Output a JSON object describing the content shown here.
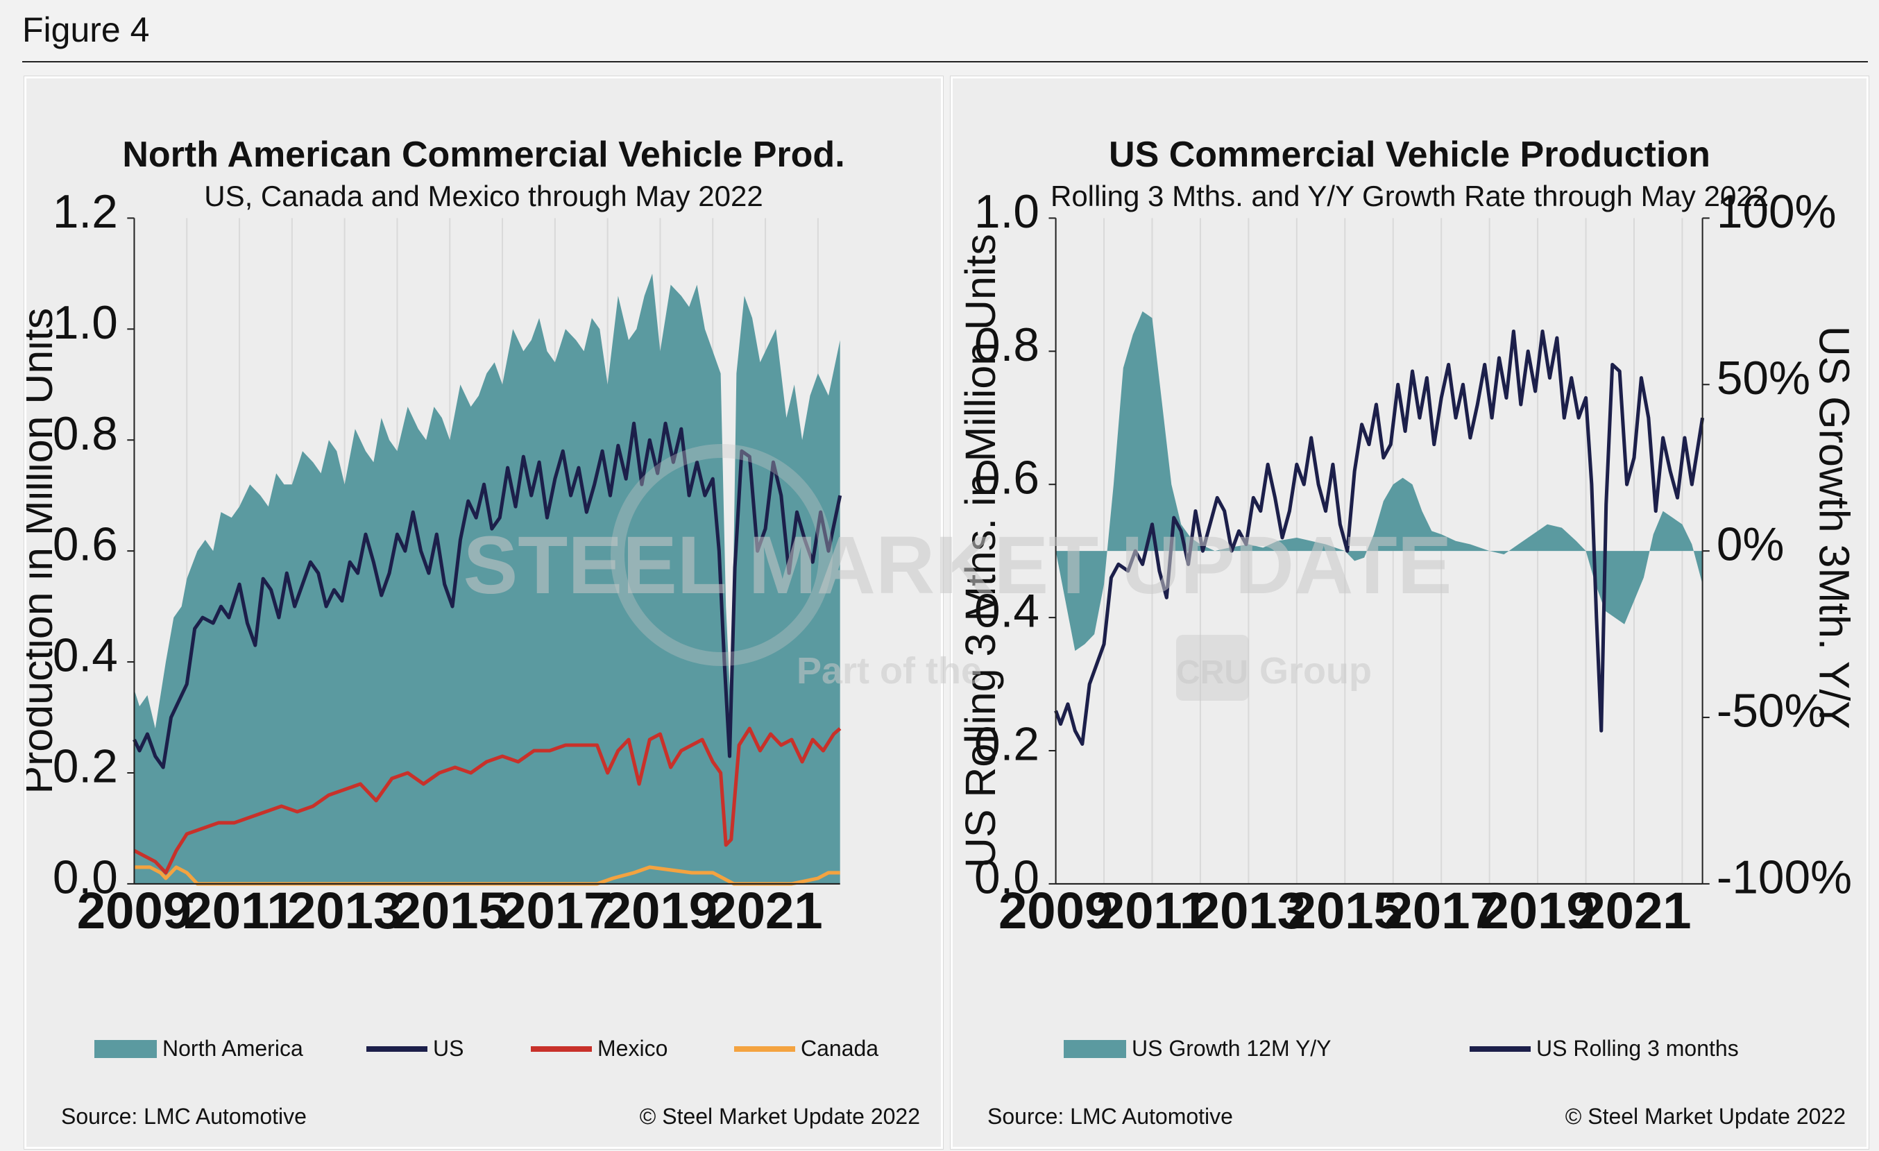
{
  "figure_label": "Figure 4",
  "watermark": {
    "line1": "STEEL MARKET UPDATE",
    "line2_a": "Part of the",
    "line2_b": "CRU",
    "line2_c": "Group"
  },
  "left": {
    "title": "North American Commercial Vehicle Prod.",
    "subtitle": "US, Canada and Mexico through May 2022",
    "source": "Source: LMC Automotive",
    "copyright": "© Steel Market Update 2022"
  },
  "right": {
    "title": "US Commercial Vehicle Production",
    "subtitle": "Rolling 3 Mths. and Y/Y Growth Rate through May 2022",
    "source": "Source: LMC Automotive",
    "copyright": "© Steel Market Update 2022"
  },
  "colors": {
    "north_america": "#5b9aa0",
    "us": "#1c1f4a",
    "mexico": "#c8312a",
    "canada": "#f4a340"
  },
  "chart_data": [
    {
      "type": "area",
      "title": "North American Commercial Vehicle Prod.",
      "subtitle": "US, Canada and Mexico through May 2022",
      "ylabel": "Production in Million Units",
      "ylim": [
        0,
        1.2
      ],
      "yticks": [
        "0.0",
        "0.2",
        "0.4",
        "0.6",
        "0.8",
        "1.0",
        "1.2"
      ],
      "xlim": [
        2009,
        2022.42
      ],
      "xticks": [
        "2009",
        "2011",
        "2013",
        "2015",
        "2017",
        "2019",
        "2021"
      ],
      "grid": "vertical",
      "legend_position": "bottom",
      "series": [
        {
          "name": "North America",
          "kind": "area",
          "x": [
            2009.0,
            2009.1,
            2009.25,
            2009.4,
            2009.6,
            2009.75,
            2009.9,
            2010.0,
            2010.2,
            2010.35,
            2010.5,
            2010.65,
            2010.85,
            2011.0,
            2011.2,
            2011.4,
            2011.55,
            2011.7,
            2011.85,
            2012.0,
            2012.2,
            2012.4,
            2012.55,
            2012.7,
            2012.85,
            2013.0,
            2013.2,
            2013.4,
            2013.55,
            2013.7,
            2013.85,
            2014.0,
            2014.2,
            2014.4,
            2014.55,
            2014.7,
            2014.85,
            2015.0,
            2015.2,
            2015.4,
            2015.55,
            2015.7,
            2015.85,
            2016.0,
            2016.2,
            2016.4,
            2016.55,
            2016.7,
            2016.85,
            2017.0,
            2017.2,
            2017.4,
            2017.55,
            2017.7,
            2017.85,
            2018.0,
            2018.2,
            2018.4,
            2018.55,
            2018.7,
            2018.85,
            2019.0,
            2019.2,
            2019.4,
            2019.55,
            2019.7,
            2019.85,
            2020.0,
            2020.15,
            2020.25,
            2020.35,
            2020.45,
            2020.6,
            2020.75,
            2020.9,
            2021.0,
            2021.2,
            2021.4,
            2021.55,
            2021.7,
            2021.85,
            2022.0,
            2022.2,
            2022.42
          ],
          "y": [
            0.35,
            0.32,
            0.34,
            0.28,
            0.4,
            0.48,
            0.5,
            0.55,
            0.6,
            0.62,
            0.6,
            0.67,
            0.66,
            0.68,
            0.72,
            0.7,
            0.68,
            0.74,
            0.72,
            0.72,
            0.78,
            0.76,
            0.74,
            0.8,
            0.78,
            0.72,
            0.82,
            0.78,
            0.76,
            0.84,
            0.8,
            0.78,
            0.86,
            0.82,
            0.8,
            0.86,
            0.84,
            0.8,
            0.9,
            0.86,
            0.88,
            0.92,
            0.94,
            0.9,
            1.0,
            0.96,
            0.98,
            1.02,
            0.96,
            0.94,
            1.0,
            0.98,
            0.96,
            1.02,
            1.0,
            0.9,
            1.06,
            0.98,
            1.0,
            1.06,
            1.1,
            0.96,
            1.08,
            1.06,
            1.04,
            1.08,
            1.0,
            0.96,
            0.92,
            0.5,
            0.3,
            0.92,
            1.06,
            1.02,
            0.94,
            0.96,
            1.0,
            0.84,
            0.9,
            0.8,
            0.88,
            0.92,
            0.88,
            0.98
          ]
        },
        {
          "name": "US",
          "kind": "line",
          "x": [
            2009.0,
            2009.1,
            2009.25,
            2009.4,
            2009.55,
            2009.7,
            2009.85,
            2010.0,
            2010.15,
            2010.3,
            2010.5,
            2010.65,
            2010.8,
            2011.0,
            2011.15,
            2011.3,
            2011.45,
            2011.6,
            2011.75,
            2011.9,
            2012.05,
            2012.2,
            2012.35,
            2012.5,
            2012.65,
            2012.8,
            2012.95,
            2013.1,
            2013.25,
            2013.4,
            2013.55,
            2013.7,
            2013.85,
            2014.0,
            2014.15,
            2014.3,
            2014.45,
            2014.6,
            2014.75,
            2014.9,
            2015.05,
            2015.2,
            2015.35,
            2015.5,
            2015.65,
            2015.8,
            2015.95,
            2016.1,
            2016.25,
            2016.4,
            2016.55,
            2016.7,
            2016.85,
            2017.0,
            2017.15,
            2017.3,
            2017.45,
            2017.6,
            2017.75,
            2017.9,
            2018.05,
            2018.2,
            2018.35,
            2018.5,
            2018.65,
            2018.8,
            2018.95,
            2019.1,
            2019.25,
            2019.4,
            2019.55,
            2019.7,
            2019.85,
            2020.0,
            2020.12,
            2020.22,
            2020.32,
            2020.42,
            2020.55,
            2020.7,
            2020.85,
            2021.0,
            2021.15,
            2021.3,
            2021.45,
            2021.6,
            2021.75,
            2021.9,
            2022.05,
            2022.2,
            2022.42
          ],
          "y": [
            0.26,
            0.24,
            0.27,
            0.23,
            0.21,
            0.3,
            0.33,
            0.36,
            0.46,
            0.48,
            0.47,
            0.5,
            0.48,
            0.54,
            0.47,
            0.43,
            0.55,
            0.53,
            0.48,
            0.56,
            0.5,
            0.54,
            0.58,
            0.56,
            0.5,
            0.53,
            0.51,
            0.58,
            0.56,
            0.63,
            0.58,
            0.52,
            0.56,
            0.63,
            0.6,
            0.67,
            0.6,
            0.56,
            0.63,
            0.54,
            0.5,
            0.62,
            0.69,
            0.66,
            0.72,
            0.64,
            0.66,
            0.75,
            0.68,
            0.77,
            0.7,
            0.76,
            0.66,
            0.73,
            0.78,
            0.7,
            0.75,
            0.67,
            0.72,
            0.78,
            0.7,
            0.79,
            0.73,
            0.83,
            0.72,
            0.8,
            0.74,
            0.83,
            0.76,
            0.82,
            0.7,
            0.76,
            0.7,
            0.73,
            0.6,
            0.4,
            0.23,
            0.57,
            0.78,
            0.77,
            0.6,
            0.64,
            0.76,
            0.7,
            0.56,
            0.67,
            0.62,
            0.58,
            0.67,
            0.6,
            0.7
          ]
        },
        {
          "name": "Mexico",
          "kind": "line",
          "x": [
            2009.0,
            2009.2,
            2009.4,
            2009.6,
            2009.8,
            2010.0,
            2010.3,
            2010.6,
            2010.9,
            2011.2,
            2011.5,
            2011.8,
            2012.1,
            2012.4,
            2012.7,
            2013.0,
            2013.3,
            2013.6,
            2013.9,
            2014.2,
            2014.5,
            2014.8,
            2015.1,
            2015.4,
            2015.7,
            2016.0,
            2016.3,
            2016.6,
            2016.9,
            2017.2,
            2017.5,
            2017.8,
            2018.0,
            2018.2,
            2018.4,
            2018.6,
            2018.8,
            2019.0,
            2019.2,
            2019.4,
            2019.6,
            2019.8,
            2020.0,
            2020.15,
            2020.25,
            2020.35,
            2020.5,
            2020.7,
            2020.9,
            2021.1,
            2021.3,
            2021.5,
            2021.7,
            2021.9,
            2022.1,
            2022.3,
            2022.42
          ],
          "y": [
            0.06,
            0.05,
            0.04,
            0.02,
            0.06,
            0.09,
            0.1,
            0.11,
            0.11,
            0.12,
            0.13,
            0.14,
            0.13,
            0.14,
            0.16,
            0.17,
            0.18,
            0.15,
            0.19,
            0.2,
            0.18,
            0.2,
            0.21,
            0.2,
            0.22,
            0.23,
            0.22,
            0.24,
            0.24,
            0.25,
            0.25,
            0.25,
            0.2,
            0.24,
            0.26,
            0.18,
            0.26,
            0.27,
            0.21,
            0.24,
            0.25,
            0.26,
            0.22,
            0.2,
            0.07,
            0.08,
            0.25,
            0.28,
            0.24,
            0.27,
            0.25,
            0.26,
            0.22,
            0.26,
            0.24,
            0.27,
            0.28
          ]
        },
        {
          "name": "Canada",
          "kind": "line",
          "x": [
            2009.0,
            2009.3,
            2009.5,
            2009.6,
            2009.8,
            2010.0,
            2010.2,
            2011.0,
            2012.0,
            2013.0,
            2014.0,
            2015.0,
            2016.0,
            2017.0,
            2017.8,
            2018.1,
            2018.5,
            2018.8,
            2019.2,
            2019.6,
            2020.0,
            2020.2,
            2020.4,
            2021.0,
            2021.5,
            2022.0,
            2022.2,
            2022.42
          ],
          "y": [
            0.03,
            0.03,
            0.02,
            0.01,
            0.03,
            0.02,
            0.0,
            0.0,
            0.0,
            0.0,
            0.0,
            0.0,
            0.0,
            0.0,
            0.0,
            0.01,
            0.02,
            0.03,
            0.025,
            0.02,
            0.02,
            0.01,
            0.0,
            0.0,
            0.0,
            0.01,
            0.02,
            0.02
          ]
        }
      ]
    },
    {
      "type": "area",
      "title": "US Commercial Vehicle Production",
      "subtitle": "Rolling 3 Mths. and Y/Y Growth Rate through May 2022",
      "ylabel": "US Rolling 3 Mths. in Million Units",
      "y2label": "US Growth 3Mth. Y/Y",
      "ylim": [
        0,
        1.0
      ],
      "yticks": [
        "0.0",
        "0.2",
        "0.4",
        "0.6",
        "0.8",
        "1.0"
      ],
      "y2lim": [
        -100,
        100
      ],
      "y2ticks": [
        "-100%",
        "-50%",
        "0%",
        "50%",
        "100%"
      ],
      "xlim": [
        2009,
        2022.42
      ],
      "xticks": [
        "2009",
        "2011",
        "2013",
        "2015",
        "2017",
        "2019",
        "2021"
      ],
      "grid": "vertical",
      "legend_position": "bottom",
      "series": [
        {
          "name": "US Growth 12M Y/Y",
          "kind": "area",
          "axis": "right",
          "x": [
            2009.0,
            2009.2,
            2009.4,
            2009.6,
            2009.8,
            2010.0,
            2010.2,
            2010.4,
            2010.6,
            2010.8,
            2011.0,
            2011.2,
            2011.4,
            2011.6,
            2011.8,
            2012.0,
            2012.3,
            2012.6,
            2013.0,
            2013.3,
            2013.6,
            2014.0,
            2014.3,
            2014.6,
            2015.0,
            2015.2,
            2015.4,
            2015.6,
            2015.8,
            2016.0,
            2016.2,
            2016.4,
            2016.6,
            2016.8,
            2017.0,
            2017.3,
            2017.6,
            2018.0,
            2018.3,
            2018.6,
            2018.9,
            2019.2,
            2019.5,
            2019.8,
            2020.0,
            2020.2,
            2020.4,
            2020.6,
            2020.8,
            2021.0,
            2021.2,
            2021.4,
            2021.6,
            2021.8,
            2022.0,
            2022.2,
            2022.42
          ],
          "y": [
            0,
            -15,
            -30,
            -28,
            -25,
            -10,
            20,
            55,
            65,
            72,
            70,
            45,
            20,
            8,
            4,
            2,
            0,
            1,
            2,
            1,
            3,
            4,
            3,
            2,
            0,
            -3,
            -2,
            5,
            15,
            20,
            22,
            20,
            12,
            6,
            5,
            3,
            2,
            0,
            -1,
            2,
            5,
            8,
            7,
            3,
            0,
            -10,
            -18,
            -20,
            -22,
            -15,
            -8,
            5,
            12,
            10,
            8,
            2,
            -10
          ]
        },
        {
          "name": "US Rolling 3 months",
          "kind": "line",
          "axis": "left",
          "x": [
            2009.0,
            2009.1,
            2009.25,
            2009.4,
            2009.55,
            2009.7,
            2009.85,
            2010.0,
            2010.15,
            2010.3,
            2010.5,
            2010.65,
            2010.8,
            2011.0,
            2011.15,
            2011.3,
            2011.45,
            2011.6,
            2011.75,
            2011.9,
            2012.05,
            2012.2,
            2012.35,
            2012.5,
            2012.65,
            2012.8,
            2012.95,
            2013.1,
            2013.25,
            2013.4,
            2013.55,
            2013.7,
            2013.85,
            2014.0,
            2014.15,
            2014.3,
            2014.45,
            2014.6,
            2014.75,
            2014.9,
            2015.05,
            2015.2,
            2015.35,
            2015.5,
            2015.65,
            2015.8,
            2015.95,
            2016.1,
            2016.25,
            2016.4,
            2016.55,
            2016.7,
            2016.85,
            2017.0,
            2017.15,
            2017.3,
            2017.45,
            2017.6,
            2017.75,
            2017.9,
            2018.05,
            2018.2,
            2018.35,
            2018.5,
            2018.65,
            2018.8,
            2018.95,
            2019.1,
            2019.25,
            2019.4,
            2019.55,
            2019.7,
            2019.85,
            2020.0,
            2020.12,
            2020.22,
            2020.32,
            2020.42,
            2020.55,
            2020.7,
            2020.85,
            2021.0,
            2021.15,
            2021.3,
            2021.45,
            2021.6,
            2021.75,
            2021.9,
            2022.05,
            2022.2,
            2022.42
          ],
          "y": [
            0.26,
            0.24,
            0.27,
            0.23,
            0.21,
            0.3,
            0.33,
            0.36,
            0.46,
            0.48,
            0.47,
            0.5,
            0.48,
            0.54,
            0.47,
            0.43,
            0.55,
            0.53,
            0.48,
            0.56,
            0.5,
            0.54,
            0.58,
            0.56,
            0.5,
            0.53,
            0.51,
            0.58,
            0.56,
            0.63,
            0.58,
            0.52,
            0.56,
            0.63,
            0.6,
            0.67,
            0.6,
            0.56,
            0.63,
            0.54,
            0.5,
            0.62,
            0.69,
            0.66,
            0.72,
            0.64,
            0.66,
            0.75,
            0.68,
            0.77,
            0.7,
            0.76,
            0.66,
            0.73,
            0.78,
            0.7,
            0.75,
            0.67,
            0.72,
            0.78,
            0.7,
            0.79,
            0.73,
            0.83,
            0.72,
            0.8,
            0.74,
            0.83,
            0.76,
            0.82,
            0.7,
            0.76,
            0.7,
            0.73,
            0.6,
            0.4,
            0.23,
            0.57,
            0.78,
            0.77,
            0.6,
            0.64,
            0.76,
            0.7,
            0.56,
            0.67,
            0.62,
            0.58,
            0.67,
            0.6,
            0.7
          ]
        }
      ]
    }
  ]
}
